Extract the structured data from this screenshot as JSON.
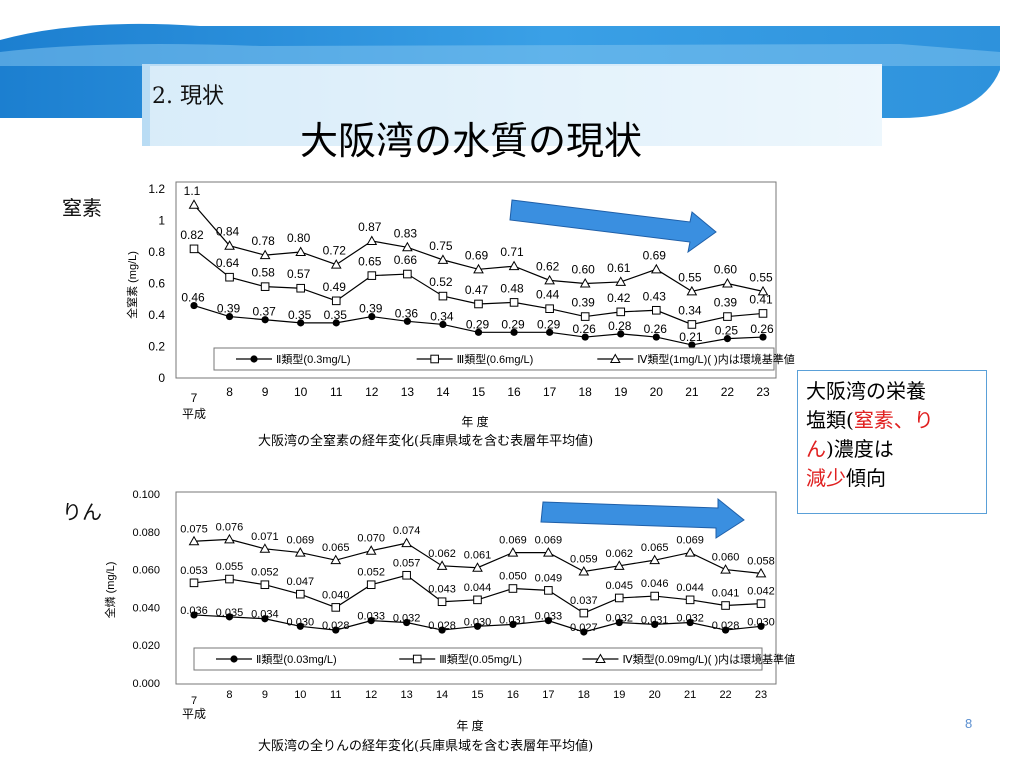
{
  "slide": {
    "section": "2. 現状",
    "title": "大阪湾の水質の現状",
    "page_number": "8"
  },
  "note": {
    "line1": "大阪湾の栄養",
    "line2_pre": "塩類(",
    "line2_red": "窒素、り",
    "line3_red": "ん",
    "line3_post": ")濃度は",
    "line4_red": "減少",
    "line4_post": "傾向"
  },
  "chart_data": [
    {
      "type": "line",
      "side_label": "窒素",
      "ylabel": "全窒素 (mg/L)",
      "xlabel": "年 度",
      "era_label": "平成",
      "caption": "大阪湾の全窒素の経年変化(兵庫県域を含む表層年平均値)",
      "categories": [
        "7",
        "8",
        "9",
        "10",
        "11",
        "12",
        "13",
        "14",
        "15",
        "16",
        "17",
        "18",
        "19",
        "20",
        "21",
        "22",
        "23"
      ],
      "yticks": [
        "0",
        "0.2",
        "0.4",
        "0.6",
        "0.8",
        "1",
        "1.2"
      ],
      "ylim": [
        0,
        1.2
      ],
      "series": [
        {
          "name": "Ⅱ類型(0.3mg/L)",
          "marker": "filled-circle",
          "values": [
            0.46,
            0.39,
            0.37,
            0.35,
            0.35,
            0.39,
            0.36,
            0.34,
            0.29,
            0.29,
            0.29,
            0.26,
            0.28,
            0.26,
            0.21,
            0.25,
            0.26
          ],
          "labels": [
            "0.46",
            "0.39",
            "0.37",
            "0.35",
            "0.35",
            "0.39",
            "0.36",
            "0.34",
            "0.29",
            "0.29",
            "0.29",
            "0.26",
            "0.28",
            "0.26",
            "0.21",
            "0.25",
            "0.26"
          ]
        },
        {
          "name": "Ⅲ類型(0.6mg/L)",
          "marker": "open-square",
          "values": [
            0.82,
            0.64,
            0.58,
            0.57,
            0.49,
            0.65,
            0.66,
            0.52,
            0.47,
            0.48,
            0.44,
            0.39,
            0.42,
            0.43,
            0.34,
            0.39,
            0.41
          ],
          "labels": [
            "0.82",
            "0.64",
            "0.58",
            "0.57",
            "0.49",
            "0.65",
            "0.66",
            "0.52",
            "0.47",
            "0.48",
            "0.44",
            "0.39",
            "0.42",
            "0.43",
            "0.34",
            "0.39",
            "0.41"
          ]
        },
        {
          "name": "Ⅳ類型(1mg/L)",
          "marker": "open-triangle",
          "values": [
            1.1,
            0.84,
            0.78,
            0.8,
            0.72,
            0.87,
            0.83,
            0.75,
            0.69,
            0.71,
            0.62,
            0.6,
            0.61,
            0.69,
            0.55,
            0.6,
            0.55
          ],
          "labels": [
            "1.1",
            "0.84",
            "0.78",
            "0.80",
            "0.72",
            "0.87",
            "0.83",
            "0.75",
            "0.69",
            "0.71",
            "0.62",
            "0.60",
            "0.61",
            "0.69",
            "0.55",
            "0.60",
            "0.55"
          ]
        }
      ],
      "legend_suffix": "( )内は環境基準値",
      "legend_position": "bottom-right",
      "annotation": "decreasing-trend-arrow"
    },
    {
      "type": "line",
      "side_label": "りん",
      "ylabel": "全燐 (mg/L)",
      "xlabel": "年 度",
      "era_label": "平成",
      "caption": "大阪湾の全りんの経年変化(兵庫県域を含む表層年平均値)",
      "categories": [
        "7",
        "8",
        "9",
        "10",
        "11",
        "12",
        "13",
        "14",
        "15",
        "16",
        "17",
        "18",
        "19",
        "20",
        "21",
        "22",
        "23"
      ],
      "yticks": [
        "0.000",
        "0.020",
        "0.040",
        "0.060",
        "0.080",
        "0.100"
      ],
      "ylim": [
        0,
        0.1
      ],
      "series": [
        {
          "name": "Ⅱ類型(0.03mg/L)",
          "marker": "filled-circle",
          "values": [
            0.036,
            0.035,
            0.034,
            0.03,
            0.028,
            0.033,
            0.032,
            0.028,
            0.03,
            0.031,
            0.033,
            0.027,
            0.032,
            0.031,
            0.032,
            0.028,
            0.03
          ],
          "labels": [
            "0.036",
            "0.035",
            "0.034",
            "0.030",
            "0.028",
            "0.033",
            "0.032",
            "0.028",
            "0.030",
            "0.031",
            "0.033",
            "0.027",
            "0.032",
            "0.031",
            "0.032",
            "0.028",
            "0.030"
          ]
        },
        {
          "name": "Ⅲ類型(0.05mg/L)",
          "marker": "open-square",
          "values": [
            0.053,
            0.055,
            0.052,
            0.047,
            0.04,
            0.052,
            0.057,
            0.043,
            0.044,
            0.05,
            0.049,
            0.037,
            0.045,
            0.046,
            0.044,
            0.041,
            0.042
          ],
          "labels": [
            "0.053",
            "0.055",
            "0.052",
            "0.047",
            "0.040",
            "0.052",
            "0.057",
            "0.043",
            "0.044",
            "0.050",
            "0.049",
            "0.037",
            "0.045",
            "0.046",
            "0.044",
            "0.041",
            "0.042"
          ]
        },
        {
          "name": "Ⅳ類型(0.09mg/L)",
          "marker": "open-triangle",
          "values": [
            0.075,
            0.076,
            0.071,
            0.069,
            0.065,
            0.07,
            0.074,
            0.062,
            0.061,
            0.069,
            0.069,
            0.059,
            0.062,
            0.065,
            0.069,
            0.06,
            0.058
          ],
          "labels": [
            "0.075",
            "0.076",
            "0.071",
            "0.069",
            "0.065",
            "0.070",
            "0.074",
            "0.062",
            "0.061",
            "0.069",
            "0.069",
            "0.059",
            "0.062",
            "0.065",
            "0.069",
            "0.060",
            "0.058"
          ]
        }
      ],
      "legend_suffix": "( )内は環境基準値",
      "legend_position": "bottom-right",
      "annotation": "decreasing-trend-arrow"
    }
  ],
  "colors": {
    "banner_dark": "#2b8fd6",
    "banner_light": "#cfe6f7",
    "arrow_fill": "#3a8fe0",
    "note_border": "#5aa0d8",
    "highlight_red": "#e02020",
    "page_number": "#5b8fd0"
  }
}
